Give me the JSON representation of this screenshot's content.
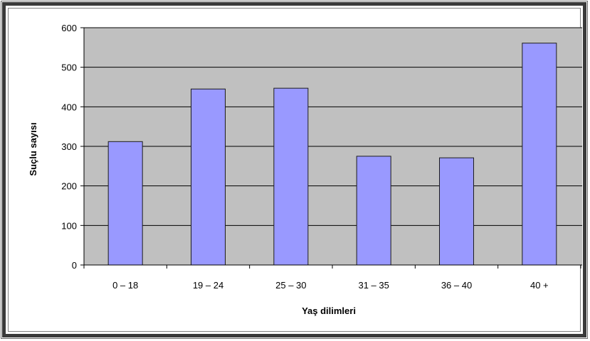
{
  "chart_data": {
    "type": "bar",
    "categories": [
      "0 – 18",
      "19 – 24",
      "25 – 30",
      "31 – 35",
      "36 – 40",
      "40 +"
    ],
    "values": [
      312,
      445,
      447,
      275,
      271,
      561
    ],
    "title": "",
    "xlabel": "Yaş dilimleri",
    "ylabel": "Suçlu sayısı",
    "ylim": [
      0,
      600
    ],
    "yticks": [
      "0",
      "100",
      "200",
      "300",
      "400",
      "500",
      "600"
    ],
    "grid": true,
    "legend": "none",
    "colors": {
      "plot_background": "#c0c0c0",
      "bar_fill": "#9999ff",
      "bar_stroke": "#1c1c1c",
      "gridline": "#000000"
    }
  }
}
